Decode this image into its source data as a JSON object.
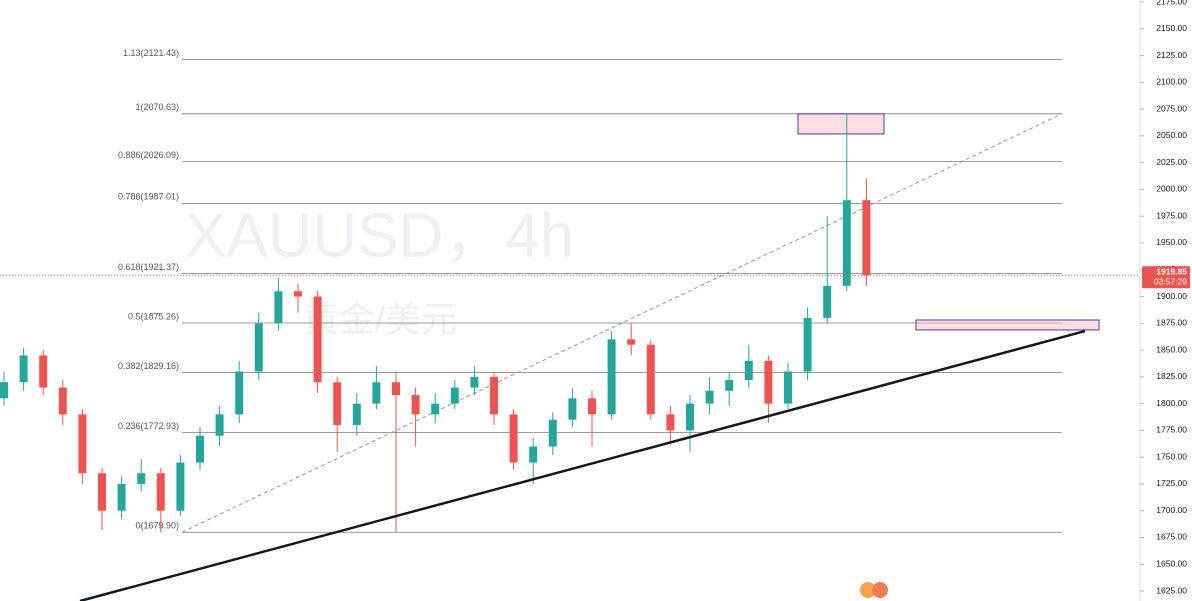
{
  "chart_data": {
    "type": "candlestick",
    "watermark": "XAUUSD，4h",
    "watermark_subtitle": "黄金/美元",
    "up_color": "#26a69a",
    "down_color": "#ef5350",
    "series": {
      "open": [
        1805,
        1820,
        1845,
        1815,
        1790,
        1735,
        1700,
        1725,
        1735,
        1700,
        1745,
        1770,
        1790,
        1830,
        1875,
        1905,
        1900,
        1820,
        1780,
        1800,
        1820,
        1808,
        1790,
        1800,
        1815,
        1825,
        1790,
        1745,
        1760,
        1785,
        1805,
        1790,
        1860,
        1855,
        1790,
        1775,
        1800,
        1812,
        1822,
        1840,
        1800,
        1830,
        1880,
        1910,
        1990
      ],
      "high": [
        1830,
        1852,
        1850,
        1822,
        1795,
        1740,
        1732,
        1748,
        1740,
        1752,
        1778,
        1798,
        1840,
        1885,
        1918,
        1912,
        1905,
        1825,
        1810,
        1835,
        1830,
        1815,
        1810,
        1822,
        1835,
        1830,
        1795,
        1768,
        1792,
        1815,
        1812,
        1868,
        1875,
        1860,
        1798,
        1808,
        1825,
        1830,
        1855,
        1845,
        1838,
        1890,
        1975,
        2070.63,
        2010
      ],
      "low": [
        1798,
        1812,
        1808,
        1780,
        1725,
        1682,
        1692,
        1718,
        1680,
        1695,
        1738,
        1760,
        1782,
        1822,
        1868,
        1885,
        1810,
        1755,
        1770,
        1795,
        1680,
        1760,
        1782,
        1795,
        1808,
        1780,
        1738,
        1725,
        1752,
        1778,
        1760,
        1785,
        1845,
        1785,
        1762,
        1755,
        1790,
        1798,
        1815,
        1782,
        1795,
        1822,
        1875,
        1905,
        1910
      ],
      "close": [
        1820,
        1845,
        1815,
        1790,
        1735,
        1700,
        1725,
        1735,
        1700,
        1745,
        1770,
        1790,
        1830,
        1875,
        1905,
        1900,
        1820,
        1780,
        1800,
        1820,
        1808,
        1790,
        1800,
        1815,
        1825,
        1790,
        1745,
        1760,
        1785,
        1805,
        1790,
        1860,
        1855,
        1790,
        1775,
        1800,
        1812,
        1822,
        1840,
        1800,
        1830,
        1880,
        1910,
        1990,
        1920
      ]
    },
    "ylim": [
      1615.7,
      2176.9
    ],
    "yticks": [
      {
        "value": 1625,
        "label": "1625.00"
      },
      {
        "value": 1650,
        "label": "1650.00"
      },
      {
        "value": 1675,
        "label": "1675.00"
      },
      {
        "value": 1700,
        "label": "1700.00"
      },
      {
        "value": 1725,
        "label": "1725.00"
      },
      {
        "value": 1750,
        "label": "1750.00"
      },
      {
        "value": 1775,
        "label": "1775.00"
      },
      {
        "value": 1800,
        "label": "1800.00"
      },
      {
        "value": 1825,
        "label": "1825.00"
      },
      {
        "value": 1850,
        "label": "1850.00"
      },
      {
        "value": 1875,
        "label": "1875.00"
      },
      {
        "value": 1900,
        "label": "1900.00"
      },
      {
        "value": 1925,
        "label": "1925.00"
      },
      {
        "value": 1950,
        "label": "1950.00"
      },
      {
        "value": 1975,
        "label": "1975.00"
      },
      {
        "value": 2000,
        "label": "2000.00"
      },
      {
        "value": 2025,
        "label": "2025.00"
      },
      {
        "value": 2050,
        "label": "2050.00"
      },
      {
        "value": 2075,
        "label": "2075.00"
      },
      {
        "value": 2100,
        "label": "2100.00"
      },
      {
        "value": 2125,
        "label": "2125.00"
      },
      {
        "value": 2150,
        "label": "2150.00"
      },
      {
        "value": 2175,
        "label": "2175.00"
      }
    ],
    "fib_levels": [
      {
        "value": 1679.9,
        "label": "0(1679.90)"
      },
      {
        "value": 1772.93,
        "label": "0.236(1772.93)"
      },
      {
        "value": 1829.16,
        "label": "0.382(1829.16)"
      },
      {
        "value": 1875.26,
        "label": "0.5(1875.26)"
      },
      {
        "value": 1921.37,
        "label": "0.618(1921.37)"
      },
      {
        "value": 1987.01,
        "label": "0.786(1987.01)"
      },
      {
        "value": 2026.09,
        "label": "0.886(2026.09)"
      },
      {
        "value": 2070.63,
        "label": "1(2070.63)"
      },
      {
        "value": 2121.43,
        "label": "1.13(2121.43)"
      }
    ],
    "zones": [
      {
        "top": 2070.6,
        "bottom": 2051.8
      },
      {
        "top": 1878.1,
        "bottom": 1868.8
      }
    ],
    "trendline": [
      1615.7,
      1867.8
    ],
    "last_price": 1919.85,
    "countdown": "03:57:29"
  }
}
